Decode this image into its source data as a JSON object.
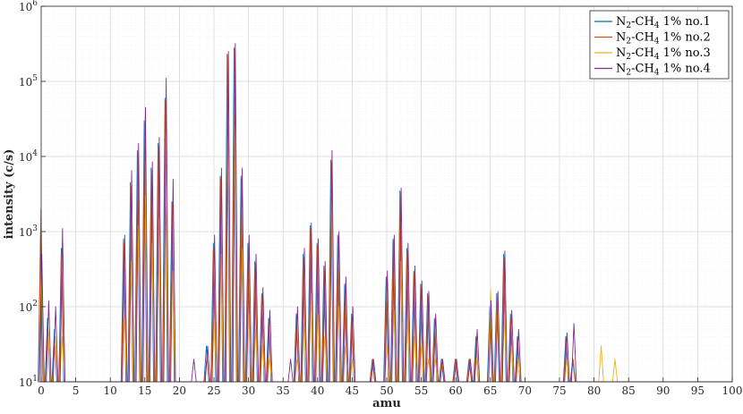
{
  "chart_data": {
    "type": "line",
    "xlabel": "amu",
    "ylabel": "intensity (c/s)",
    "xlim": [
      0,
      100
    ],
    "ylim_exponents": [
      1,
      6
    ],
    "y_scale": "log",
    "grid": "on (major and minor)",
    "legend_position": "top-right",
    "x_ticks": [
      "0",
      "5",
      "10",
      "15",
      "20",
      "25",
      "30",
      "35",
      "40",
      "45",
      "50",
      "55",
      "60",
      "65",
      "70",
      "75",
      "80",
      "85",
      "90",
      "95",
      "100"
    ],
    "y_ticks": [
      {
        "base": "10",
        "exp": "1"
      },
      {
        "base": "10",
        "exp": "2"
      },
      {
        "base": "10",
        "exp": "3"
      },
      {
        "base": "10",
        "exp": "4"
      },
      {
        "base": "10",
        "exp": "5"
      },
      {
        "base": "10",
        "exp": "6"
      }
    ],
    "peaks_amu": [
      0,
      1,
      2,
      3,
      12,
      13,
      14,
      15,
      16,
      17,
      18,
      19,
      20,
      22,
      24,
      25,
      26,
      27,
      28,
      29,
      30,
      31,
      32,
      33,
      36,
      37,
      38,
      39,
      40,
      41,
      42,
      43,
      44,
      45,
      48,
      50,
      51,
      52,
      53,
      54,
      55,
      56,
      57,
      58,
      60,
      62,
      63,
      64,
      65,
      66,
      67,
      68,
      69,
      70,
      76,
      77,
      78,
      80,
      81,
      83
    ],
    "series": [
      {
        "name_parts": [
          "N",
          "2",
          "-CH",
          "4",
          " 1% no.1"
        ],
        "color": "#0072BD",
        "values": [
          1000,
          70,
          50,
          600,
          800,
          4500,
          12000,
          30000,
          7000,
          15000,
          60000,
          2500,
          10,
          10,
          30,
          700,
          5500,
          230000,
          280000,
          5500,
          700,
          400,
          150,
          70,
          10,
          80,
          500,
          1200,
          700,
          350,
          9000,
          900,
          200,
          80,
          20,
          250,
          800,
          3500,
          600,
          300,
          200,
          150,
          70,
          20,
          20,
          20,
          40,
          10,
          100,
          150,
          500,
          80,
          40,
          10,
          40,
          20,
          10,
          10,
          10,
          10
        ]
      },
      {
        "name_parts": [
          "N",
          "2",
          "-CH",
          "4",
          " 1% no.2"
        ],
        "color": "#D95319",
        "values": [
          2000,
          60,
          40,
          550,
          700,
          4000,
          11000,
          28000,
          6500,
          14000,
          55000,
          2300,
          10,
          10,
          20,
          600,
          5000,
          220000,
          270000,
          5000,
          650,
          380,
          140,
          60,
          10,
          70,
          450,
          1100,
          650,
          320,
          8500,
          850,
          180,
          75,
          20,
          230,
          750,
          3300,
          550,
          280,
          180,
          140,
          60,
          20,
          20,
          20,
          35,
          10,
          90,
          140,
          450,
          70,
          35,
          10,
          35,
          20,
          10,
          10,
          10,
          10
        ]
      },
      {
        "name_parts": [
          "N",
          "2",
          "-CH",
          "4",
          " 1% no.3"
        ],
        "color": "#EDB120",
        "values": [
          200,
          40,
          40,
          40,
          70,
          400,
          1200,
          3000,
          700,
          1500,
          7000,
          300,
          10,
          10,
          10,
          70,
          500,
          18000,
          25000,
          600,
          80,
          50,
          30,
          20,
          10,
          20,
          60,
          150,
          80,
          40,
          2500,
          100,
          30,
          20,
          10,
          30,
          90,
          400,
          70,
          40,
          30,
          20,
          20,
          10,
          10,
          10,
          20,
          10,
          170,
          150,
          80,
          30,
          20,
          10,
          20,
          10,
          10,
          10,
          30,
          20
        ]
      },
      {
        "name_parts": [
          "N",
          "2",
          "-CH",
          "4",
          " 1% no.4"
        ],
        "color": "#7E2F8E",
        "values": [
          500,
          120,
          100,
          1100,
          900,
          6500,
          15000,
          45000,
          8500,
          18000,
          110000,
          5000,
          10,
          20,
          30,
          900,
          7000,
          250000,
          320000,
          7000,
          900,
          500,
          180,
          90,
          20,
          100,
          600,
          1300,
          800,
          400,
          12000,
          1000,
          250,
          100,
          20,
          300,
          900,
          3800,
          700,
          350,
          220,
          160,
          80,
          20,
          20,
          20,
          50,
          10,
          120,
          160,
          550,
          90,
          50,
          10,
          45,
          60,
          10,
          10,
          10,
          10
        ]
      }
    ]
  }
}
